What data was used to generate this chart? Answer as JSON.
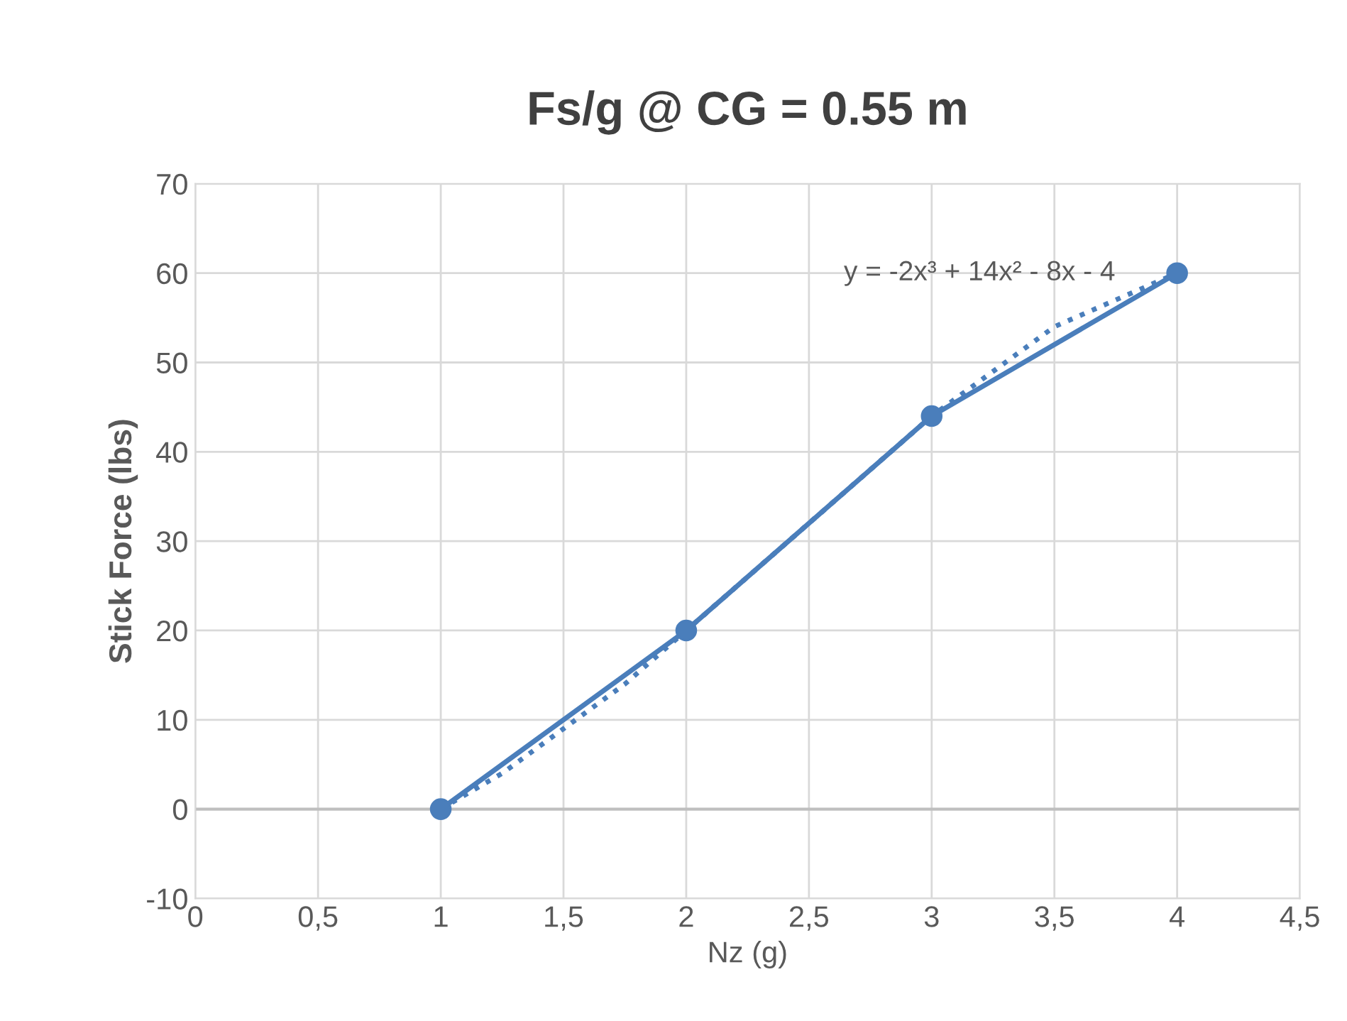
{
  "chart_data": {
    "type": "line",
    "title": "Fs/g @ CG = 0.55 m",
    "xlabel": "Nz (g)",
    "ylabel": "Stick Force (lbs)",
    "x": [
      1,
      2,
      3,
      4
    ],
    "series": [
      {
        "color": "#4a7ebb",
        "values": [
          0,
          20,
          44,
          60
        ],
        "marker": "circle",
        "line_style": "solid"
      },
      {
        "type": "line",
        "color": "#4a7ebb",
        "x": [
          1,
          1.25,
          1.5,
          1.75,
          2,
          2.25,
          2.5,
          2.75,
          3,
          3.25,
          3.5,
          3.75,
          4
        ],
        "values": [
          0,
          4,
          9,
          14,
          20,
          26,
          32,
          38,
          44,
          49,
          54,
          57,
          60
        ],
        "marker": "none",
        "line_style": "dotted"
      }
    ],
    "annotations": [
      "y = -2x³ + 14x² - 8x - 4"
    ],
    "xlim": [
      0,
      4.5
    ],
    "xticks": [
      0,
      {
        "value": 0.5,
        "label": "0,5"
      },
      1,
      {
        "value": 1.5,
        "label": "1,5"
      },
      2,
      {
        "value": 2.5,
        "label": "2,5"
      },
      3,
      {
        "value": 3.5,
        "label": "3,5"
      },
      4,
      {
        "value": 4.5,
        "label": "4,5"
      }
    ],
    "ylim": [
      -10,
      70
    ],
    "yticks": [
      -10,
      0,
      10,
      20,
      30,
      40,
      50,
      60,
      70
    ],
    "grid": true,
    "ref_lines": [
      {
        "axis": "y",
        "value": 0,
        "color": "#bfbfbf"
      }
    ]
  }
}
